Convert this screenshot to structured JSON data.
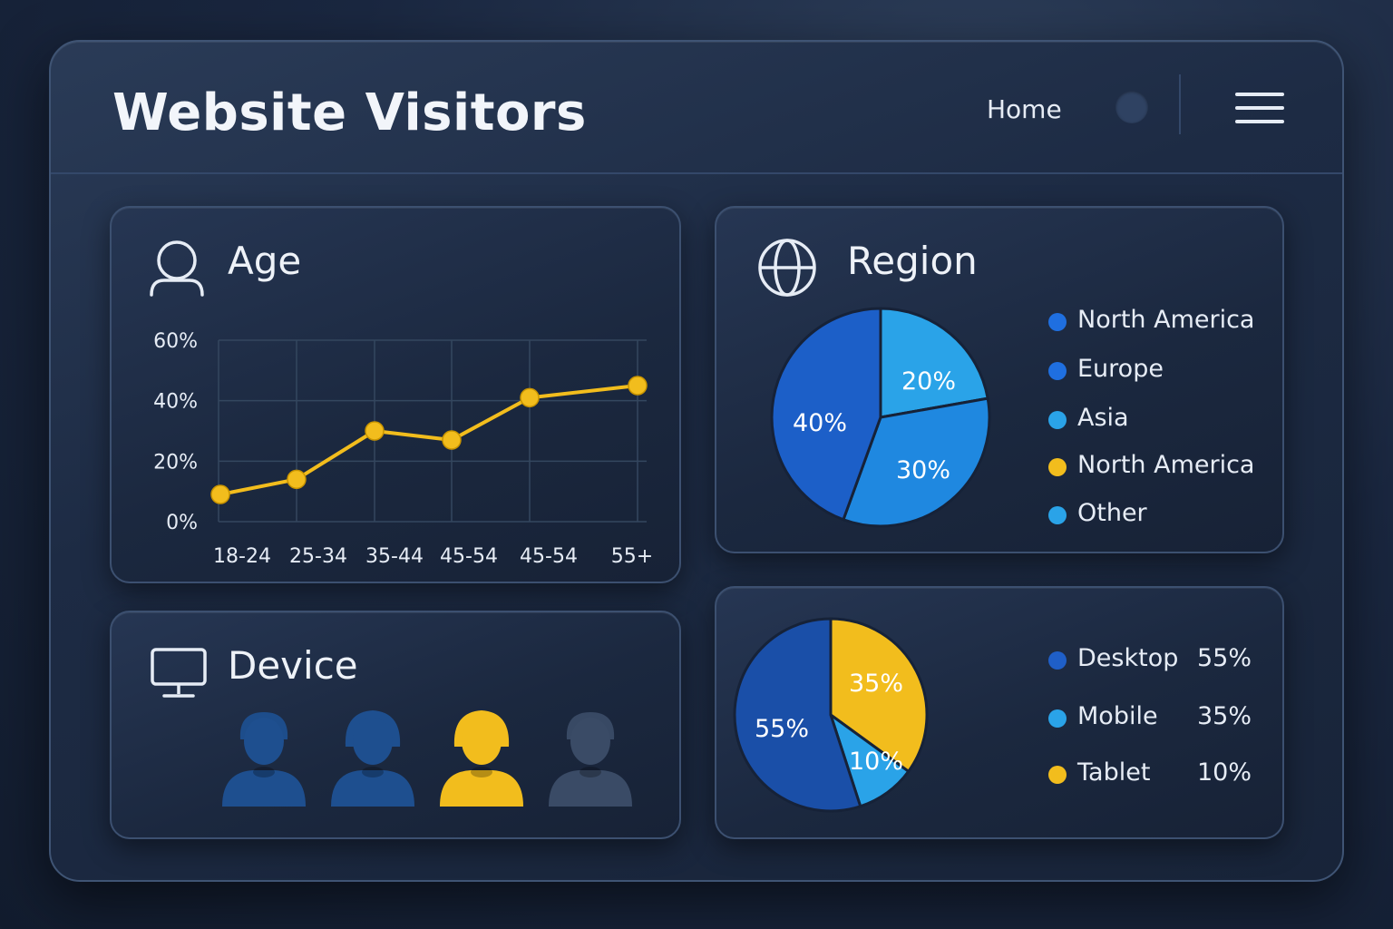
{
  "header": {
    "title": "Website Visitors",
    "home_label": "Home"
  },
  "age_card": {
    "title": "Age",
    "icon": "user-icon"
  },
  "region_card": {
    "title": "Region",
    "icon": "globe-icon",
    "legend": [
      {
        "label": "North  America",
        "color": "#1f6fe0"
      },
      {
        "label": "Europe",
        "color": "#1f6fe0"
      },
      {
        "label": "Asia",
        "color": "#2aa3e8"
      },
      {
        "label": "North America",
        "color": "#f2bd1d"
      },
      {
        "label": "Other",
        "color": "#2aa3e8"
      }
    ]
  },
  "device_card": {
    "title": "Device",
    "icon": "monitor-icon",
    "avatars": [
      {
        "icon": "male-avatar-icon",
        "color": "#1e4f8f"
      },
      {
        "icon": "female-avatar-icon",
        "color": "#1e4f8f"
      },
      {
        "icon": "female-avatar-icon",
        "color": "#f2bd1d"
      },
      {
        "icon": "male-avatar-icon",
        "color": "#3a4b66"
      }
    ]
  },
  "device_share_card": {
    "legend": [
      {
        "label": "Desktop",
        "value": "55%",
        "color": "#1f5fc8"
      },
      {
        "label": "Mobile",
        "value": "35%",
        "color": "#2aa3e8"
      },
      {
        "label": "Tablet",
        "value": "10%",
        "color": "#f2bd1d"
      }
    ]
  },
  "chart_data": [
    {
      "type": "line",
      "categories": [
        "18-24",
        "25-34",
        "35-44",
        "45-54",
        "45-54",
        "55+"
      ],
      "values": [
        9,
        14,
        30,
        27,
        41,
        45
      ],
      "y_ticks": [
        "0%",
        "20%",
        "40%",
        "60%"
      ],
      "ylim": [
        0,
        60
      ],
      "grid": true,
      "color": "#f2bd1d"
    },
    {
      "type": "pie",
      "slices": [
        {
          "label": "20%",
          "value": 20,
          "color": "#2aa3e8"
        },
        {
          "label": "30%",
          "value": 30,
          "color": "#1f88e0"
        },
        {
          "label": "40%",
          "value": 40,
          "color": "#1c5fc8"
        }
      ]
    },
    {
      "type": "pie",
      "slices": [
        {
          "label": "35%",
          "value": 35,
          "color": "#f2bd1d"
        },
        {
          "label": "10%",
          "value": 10,
          "color": "#2aa3e8"
        },
        {
          "label": "55%",
          "value": 55,
          "color": "#1a4fa8"
        }
      ]
    }
  ]
}
